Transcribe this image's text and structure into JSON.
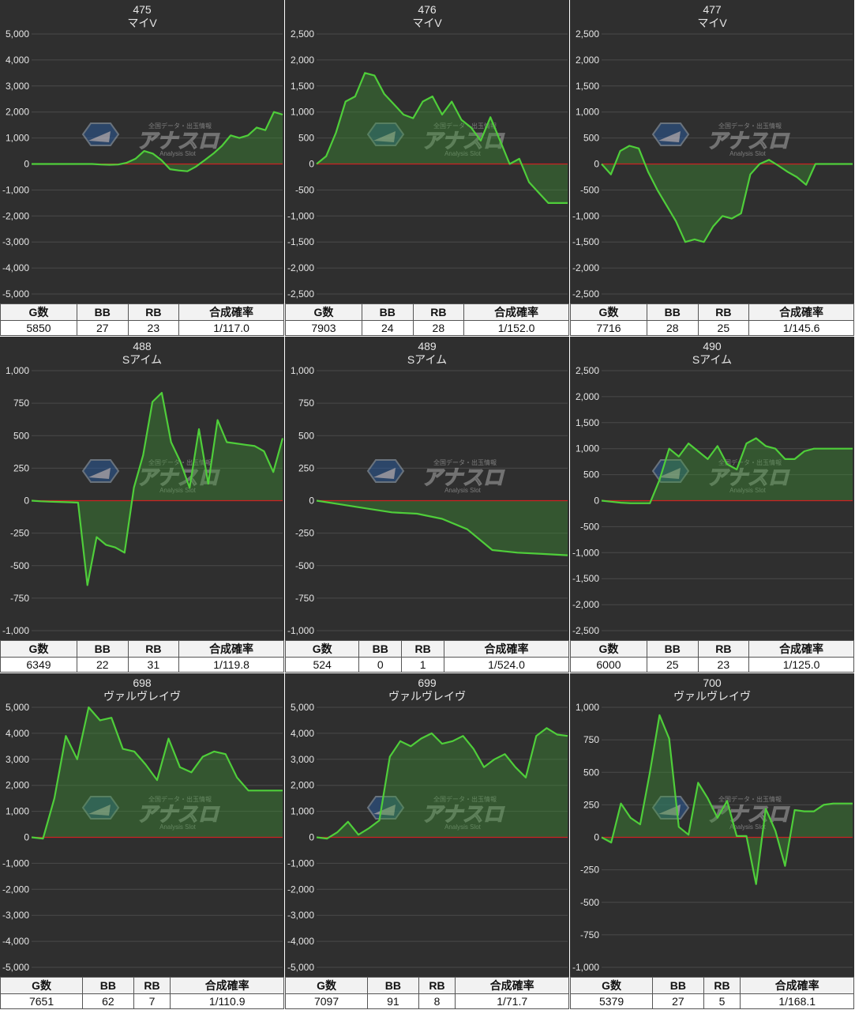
{
  "watermark": {
    "top": "全国データ・出玉情報",
    "main": "アナスロ",
    "sub": "Analysis Slot"
  },
  "table_headers": [
    "G数",
    "BB",
    "RB",
    "合成確率"
  ],
  "colors": {
    "line": "#4fce3a",
    "fill": "rgba(60,150,50,0.38)",
    "zero": "#cc2222",
    "grid": "#4a4a4a",
    "panel": "#2f2f2f",
    "text": "#e6e6e6"
  },
  "chart_data": [
    {
      "type": "area",
      "title": "475",
      "subtitle": "マイV",
      "ylim": [
        -5000,
        5000
      ],
      "yticks": [
        5000,
        4000,
        3000,
        2000,
        1000,
        0,
        -1000,
        -2000,
        -3000,
        -4000,
        -5000
      ],
      "ytick_labels": [
        "5,000",
        "4,000",
        "3,000",
        "2,000",
        "1,000",
        "0",
        "-1,000",
        "-2,000",
        "-3,000",
        "-4,000",
        "-5,000"
      ],
      "x": [
        0,
        2,
        4,
        6,
        8,
        10,
        12,
        14,
        16,
        18,
        20,
        22,
        24,
        26,
        28,
        30,
        32,
        34,
        36,
        38,
        40,
        42,
        44,
        46,
        48,
        50,
        52,
        54,
        56,
        58
      ],
      "values": [
        0,
        0,
        0,
        0,
        0,
        0,
        0,
        0,
        -20,
        -30,
        -20,
        50,
        200,
        500,
        400,
        150,
        -200,
        -250,
        -280,
        -100,
        150,
        400,
        700,
        1100,
        1000,
        1100,
        1400,
        1300,
        2000,
        1900
      ],
      "stats": {
        "g": "5850",
        "bb": "27",
        "rb": "23",
        "prob": "1/117.0"
      }
    },
    {
      "type": "area",
      "title": "476",
      "subtitle": "マイV",
      "ylim": [
        -2500,
        2500
      ],
      "yticks": [
        2500,
        2000,
        1500,
        1000,
        500,
        0,
        -500,
        -1000,
        -1500,
        -2000,
        -2500
      ],
      "ytick_labels": [
        "2,500",
        "2,000",
        "1,500",
        "1,000",
        "500",
        "0",
        "-500",
        "-1,000",
        "-1,500",
        "-2,000",
        "-2,500"
      ],
      "x": [
        0,
        1,
        2,
        3,
        4,
        5,
        6,
        7,
        8,
        9,
        10,
        11,
        12,
        13,
        14,
        15,
        16,
        17,
        18,
        19,
        20,
        21,
        22,
        23,
        24,
        25,
        26
      ],
      "values": [
        0,
        150,
        600,
        1200,
        1300,
        1750,
        1700,
        1350,
        1150,
        950,
        880,
        1200,
        1300,
        950,
        1200,
        850,
        700,
        450,
        900,
        450,
        0,
        100,
        -350,
        -550,
        -750,
        -750,
        -750
      ],
      "stats": {
        "g": "7903",
        "bb": "24",
        "rb": "28",
        "prob": "1/152.0"
      }
    },
    {
      "type": "area",
      "title": "477",
      "subtitle": "マイV",
      "ylim": [
        -2500,
        2500
      ],
      "yticks": [
        2500,
        2000,
        1500,
        1000,
        500,
        0,
        -500,
        -1000,
        -1500,
        -2000,
        -2500
      ],
      "ytick_labels": [
        "2,500",
        "2,000",
        "1,500",
        "1,000",
        "500",
        "0",
        "-500",
        "-1,000",
        "-1,500",
        "-2,000",
        "-2,500"
      ],
      "x": [
        0,
        1,
        2,
        3,
        4,
        5,
        6,
        7,
        8,
        9,
        10,
        11,
        12,
        13,
        14,
        15,
        16,
        17,
        18,
        19,
        20,
        21,
        22,
        23,
        24,
        25,
        26,
        27
      ],
      "values": [
        0,
        -200,
        250,
        350,
        300,
        -150,
        -500,
        -800,
        -1100,
        -1500,
        -1450,
        -1500,
        -1200,
        -1000,
        -1050,
        -950,
        -200,
        0,
        80,
        -30,
        -150,
        -250,
        -400,
        0,
        0,
        0,
        0,
        0
      ],
      "stats": {
        "g": "7716",
        "bb": "28",
        "rb": "25",
        "prob": "1/145.6"
      }
    },
    {
      "type": "area",
      "title": "488",
      "subtitle": "Sアイム",
      "ylim": [
        -1000,
        1000
      ],
      "yticks": [
        1000,
        750,
        500,
        250,
        0,
        -250,
        -500,
        -750,
        -1000
      ],
      "ytick_labels": [
        "1,000",
        "750",
        "500",
        "250",
        "0",
        "-250",
        "-500",
        "-750",
        "-1,000"
      ],
      "x": [
        0,
        1,
        2,
        3,
        4,
        5,
        6,
        7,
        8,
        9,
        10,
        11,
        12,
        13,
        14,
        15,
        16,
        17,
        18,
        19,
        20,
        21,
        22,
        23,
        24,
        25,
        26,
        27
      ],
      "values": [
        0,
        -5,
        -8,
        -10,
        -12,
        -15,
        -650,
        -280,
        -340,
        -360,
        -400,
        100,
        350,
        760,
        830,
        450,
        300,
        100,
        550,
        130,
        620,
        450,
        440,
        430,
        420,
        380,
        220,
        480
      ],
      "stats": {
        "g": "6349",
        "bb": "22",
        "rb": "31",
        "prob": "1/119.8"
      }
    },
    {
      "type": "area",
      "title": "489",
      "subtitle": "Sアイム",
      "ylim": [
        -1000,
        1000
      ],
      "yticks": [
        1000,
        750,
        500,
        250,
        0,
        -250,
        -500,
        -750,
        -1000
      ],
      "ytick_labels": [
        "1,000",
        "750",
        "500",
        "250",
        "0",
        "-250",
        "-500",
        "-750",
        "-1,000"
      ],
      "x": [
        0,
        1,
        2,
        3,
        4,
        5,
        6,
        7,
        8,
        9,
        10
      ],
      "values": [
        0,
        -30,
        -60,
        -90,
        -100,
        -140,
        -220,
        -380,
        -400,
        -410,
        -420
      ],
      "stats": {
        "g": "524",
        "bb": "0",
        "rb": "1",
        "prob": "1/524.0"
      }
    },
    {
      "type": "area",
      "title": "490",
      "subtitle": "Sアイム",
      "ylim": [
        -2500,
        2500
      ],
      "yticks": [
        2500,
        2000,
        1500,
        1000,
        500,
        0,
        -500,
        -1000,
        -1500,
        -2000,
        -2500
      ],
      "ytick_labels": [
        "2,500",
        "2,000",
        "1,500",
        "1,000",
        "500",
        "0",
        "-500",
        "-1,000",
        "-1,500",
        "-2,000",
        "-2,500"
      ],
      "x": [
        0,
        1,
        2,
        3,
        4,
        5,
        6,
        7,
        8,
        9,
        10,
        11,
        12,
        13,
        14,
        15,
        16,
        17,
        18,
        19,
        20,
        21,
        22,
        23,
        24,
        25,
        26
      ],
      "values": [
        0,
        -20,
        -40,
        -50,
        -50,
        -50,
        400,
        1000,
        850,
        1100,
        950,
        800,
        1050,
        700,
        600,
        1100,
        1200,
        1050,
        1000,
        800,
        800,
        950,
        1000,
        1000,
        1000,
        1000,
        1000
      ],
      "stats": {
        "g": "6000",
        "bb": "25",
        "rb": "23",
        "prob": "1/125.0"
      }
    },
    {
      "type": "area",
      "title": "698",
      "subtitle": "ヴァルヴレイヴ",
      "ylim": [
        -5000,
        5000
      ],
      "yticks": [
        5000,
        4000,
        3000,
        2000,
        1000,
        0,
        -1000,
        -2000,
        -3000,
        -4000,
        -5000
      ],
      "ytick_labels": [
        "5,000",
        "4,000",
        "3,000",
        "2,000",
        "1,000",
        "0",
        "-1,000",
        "-2,000",
        "-3,000",
        "-4,000",
        "-5,000"
      ],
      "x": [
        0,
        1,
        2,
        3,
        4,
        5,
        6,
        7,
        8,
        9,
        10,
        11,
        12,
        13,
        14,
        15,
        16,
        17,
        18,
        19,
        20,
        21,
        22
      ],
      "values": [
        0,
        -50,
        1500,
        3900,
        3000,
        5000,
        4500,
        4600,
        3400,
        3300,
        2800,
        2200,
        3800,
        2700,
        2500,
        3100,
        3300,
        3200,
        2300,
        1800,
        1800,
        1800,
        1800
      ],
      "stats": {
        "g": "7651",
        "bb": "62",
        "rb": "7",
        "prob": "1/110.9"
      }
    },
    {
      "type": "area",
      "title": "699",
      "subtitle": "ヴァルヴレイヴ",
      "ylim": [
        -5000,
        5000
      ],
      "yticks": [
        5000,
        4000,
        3000,
        2000,
        1000,
        0,
        -1000,
        -2000,
        -3000,
        -4000,
        -5000
      ],
      "ytick_labels": [
        "5,000",
        "4,000",
        "3,000",
        "2,000",
        "1,000",
        "0",
        "-1,000",
        "-2,000",
        "-3,000",
        "-4,000",
        "-5,000"
      ],
      "x": [
        0,
        1,
        2,
        3,
        4,
        5,
        6,
        7,
        8,
        9,
        10,
        11,
        12,
        13,
        14,
        15,
        16,
        17,
        18,
        19,
        20,
        21,
        22,
        23,
        24
      ],
      "values": [
        0,
        -50,
        200,
        600,
        100,
        350,
        650,
        3100,
        3700,
        3500,
        3800,
        4000,
        3600,
        3700,
        3900,
        3400,
        2700,
        3000,
        3200,
        2700,
        2300,
        3900,
        4200,
        3950,
        3900
      ],
      "stats": {
        "g": "7097",
        "bb": "91",
        "rb": "8",
        "prob": "1/71.7"
      }
    },
    {
      "type": "area",
      "title": "700",
      "subtitle": "ヴァルヴレイヴ",
      "ylim": [
        -1000,
        1000
      ],
      "yticks": [
        1000,
        750,
        500,
        250,
        0,
        -250,
        -500,
        -750,
        -1000
      ],
      "ytick_labels": [
        "1,000",
        "750",
        "500",
        "250",
        "0",
        "-250",
        "-500",
        "-750",
        "-1,000"
      ],
      "x": [
        0,
        1,
        2,
        3,
        4,
        5,
        6,
        7,
        8,
        9,
        10,
        11,
        12,
        13,
        14,
        15,
        16,
        17,
        18,
        19,
        20,
        21,
        22,
        23,
        24,
        25,
        26
      ],
      "values": [
        0,
        -40,
        260,
        150,
        100,
        500,
        940,
        760,
        80,
        20,
        420,
        300,
        150,
        280,
        10,
        10,
        -360,
        220,
        50,
        -220,
        210,
        200,
        200,
        250,
        260,
        260,
        260
      ],
      "stats": {
        "g": "5379",
        "bb": "27",
        "rb": "5",
        "prob": "1/168.1"
      }
    }
  ]
}
